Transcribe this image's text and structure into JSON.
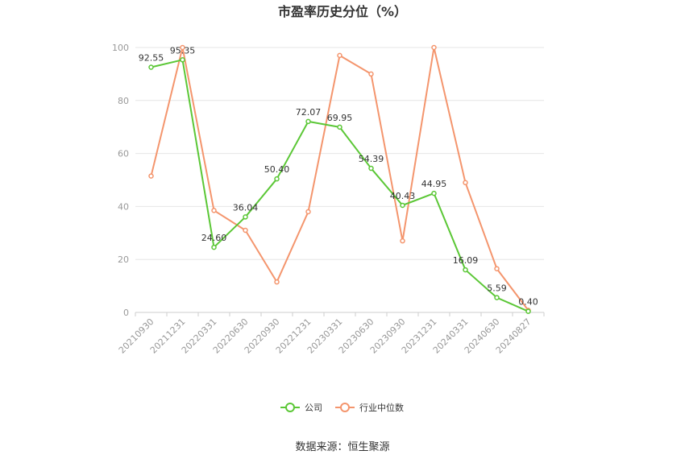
{
  "chart_data": {
    "type": "line",
    "title": "市盈率历史分位（%）",
    "categories": [
      "20210930",
      "20211231",
      "20220331",
      "20220630",
      "20220930",
      "20221231",
      "20230331",
      "20230630",
      "20230930",
      "20231231",
      "20240331",
      "20240630",
      "20240827"
    ],
    "ylim": [
      0,
      100
    ],
    "yticks": [
      0,
      20,
      40,
      60,
      80,
      100
    ],
    "grid": true,
    "legend_position": "bottom",
    "series": [
      {
        "name": "公司",
        "color": "#5bc736",
        "values": [
          92.55,
          95.35,
          24.6,
          36.04,
          50.4,
          72.07,
          69.95,
          54.39,
          40.43,
          44.95,
          16.09,
          5.59,
          0.4
        ],
        "labels": [
          "92.55",
          "95.35",
          "24.60",
          "36.04",
          "50.40",
          "72.07",
          "69.95",
          "54.39",
          "40.43",
          "44.95",
          "16.09",
          "5.59",
          "0.40"
        ]
      },
      {
        "name": "行业中位数",
        "color": "#f4956d",
        "values": [
          51.5,
          100,
          38.5,
          31.0,
          11.5,
          38.0,
          97.0,
          90.0,
          27.0,
          100,
          49.0,
          16.5,
          0.8
        ]
      }
    ]
  },
  "source": "数据来源：恒生聚源"
}
